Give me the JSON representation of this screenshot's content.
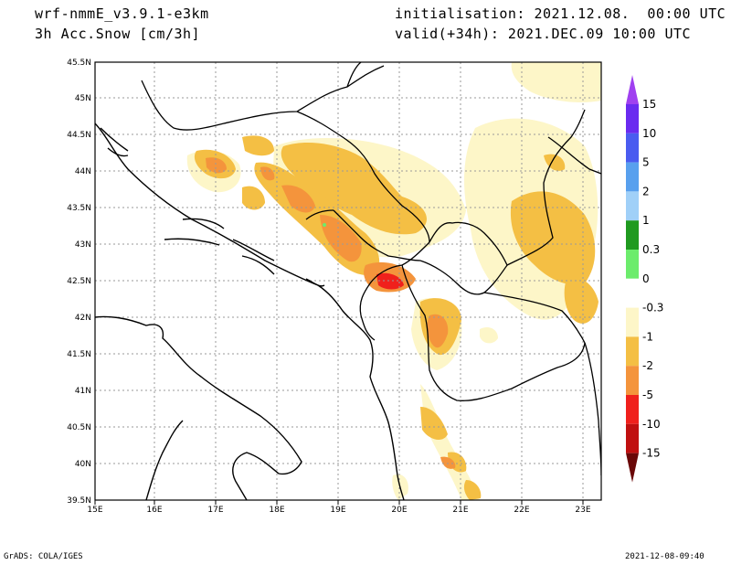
{
  "header": {
    "model": "wrf-nmmE_v3.9.1-e3km",
    "field": "3h Acc.Snow [cm/3h]",
    "initialisation": "initialisation: 2021.12.08.  00:00 UTC",
    "valid": "valid(+34h): 2021.DEC.09 10:00 UTC"
  },
  "footer": {
    "credit": "GrADS: COLA/IGES",
    "timestamp": "2021-12-08-09:40"
  },
  "map": {
    "lon_labels": [
      "15E",
      "16E",
      "17E",
      "18E",
      "19E",
      "20E",
      "21E",
      "22E",
      "23E"
    ],
    "lat_labels": [
      "39.5N",
      "40N",
      "40.5N",
      "41N",
      "41.5N",
      "42N",
      "42.5N",
      "43N",
      "43.5N",
      "44N",
      "44.5N",
      "45N",
      "45.5N"
    ]
  },
  "legend": {
    "labels": [
      "15",
      "10",
      "5",
      "2",
      "1",
      "0.3",
      "0",
      "-0.3",
      "-1",
      "-2",
      "-5",
      "-10",
      "-15"
    ],
    "colors": [
      "#6a2bf0",
      "#4a5cf0",
      "#58a0ee",
      "#a0d0f8",
      "#1f9a1f",
      "#6cec6c",
      "#ffffff",
      "#fdf6c8",
      "#f4bf44",
      "#f4943c",
      "#f0201c",
      "#c01010",
      "#8a0a0a"
    ],
    "top_color": "#a040f0",
    "bottom_color": "#6a0808"
  },
  "colors": {
    "land": "#ffffff",
    "snow_light": "#fdf6c8",
    "snow_1": "#f4bf44",
    "snow_2": "#f4943c",
    "snow_5": "#f0201c"
  }
}
